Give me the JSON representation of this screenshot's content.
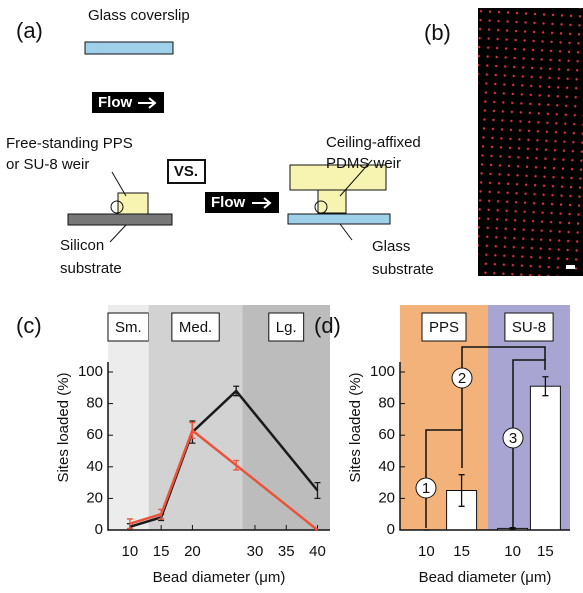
{
  "panel_a": {
    "label": "(a)",
    "coverslip": "Glass coverslip",
    "flow_top": "Flow",
    "flow_right": "Flow",
    "left_weir": [
      "Free-standing PPS",
      "or SU-8 weir"
    ],
    "vs": "VS.",
    "right_weir": [
      "Ceiling-affixed",
      "PDMS weir"
    ],
    "left_substrate": [
      "Silicon",
      "substrate"
    ],
    "right_substrate": [
      "Glass",
      "substrate"
    ]
  },
  "panel_b": {
    "label": "(b)"
  },
  "chart_data": [
    {
      "type": "line",
      "label": "(c)",
      "ylabel": "Sites loaded (%)",
      "xlabel": "Bead diameter (μm)",
      "regions": [
        {
          "label": "Sm.",
          "range": [
            6.5,
            13
          ],
          "color": "#ececec"
        },
        {
          "label": "Med.",
          "range": [
            13,
            28
          ],
          "color": "#d2d2d2"
        },
        {
          "label": "Lg.",
          "range": [
            28,
            42
          ],
          "color": "#bcbcbc"
        }
      ],
      "x": [
        10,
        15,
        20,
        27,
        40
      ],
      "series": [
        {
          "color": "#1a1a1a",
          "values": [
            2,
            8,
            62,
            88,
            25
          ],
          "errors": [
            2,
            2,
            7,
            3,
            5
          ]
        },
        {
          "color": "#e8553a",
          "values": [
            4,
            10,
            63,
            41,
            0
          ],
          "errors": [
            3,
            3,
            5,
            3,
            0
          ]
        }
      ],
      "xlim": [
        6.5,
        42
      ],
      "ylim": [
        0,
        100
      ],
      "xticks": [
        10,
        15,
        20,
        30,
        35,
        40
      ],
      "yticks": [
        0,
        20,
        40,
        60,
        80,
        100
      ]
    },
    {
      "type": "bar",
      "label": "(d)",
      "ylabel": "Sites loaded (%)",
      "xlabel": "Bead diameter (μm)",
      "groups": [
        {
          "name": "PPS",
          "color": "#f3b27a",
          "categories": [
            "10",
            "15"
          ],
          "values": [
            0,
            25
          ],
          "errors": [
            0,
            10
          ]
        },
        {
          "name": "SU-8",
          "color": "#a9a5d3",
          "categories": [
            "10",
            "15"
          ],
          "values": [
            1,
            91
          ],
          "errors": [
            0.5,
            6
          ]
        }
      ],
      "annotations": [
        "1",
        "2",
        "3"
      ],
      "ylim": [
        0,
        100
      ],
      "yticks": [
        0,
        20,
        40,
        60,
        80,
        100
      ]
    }
  ]
}
